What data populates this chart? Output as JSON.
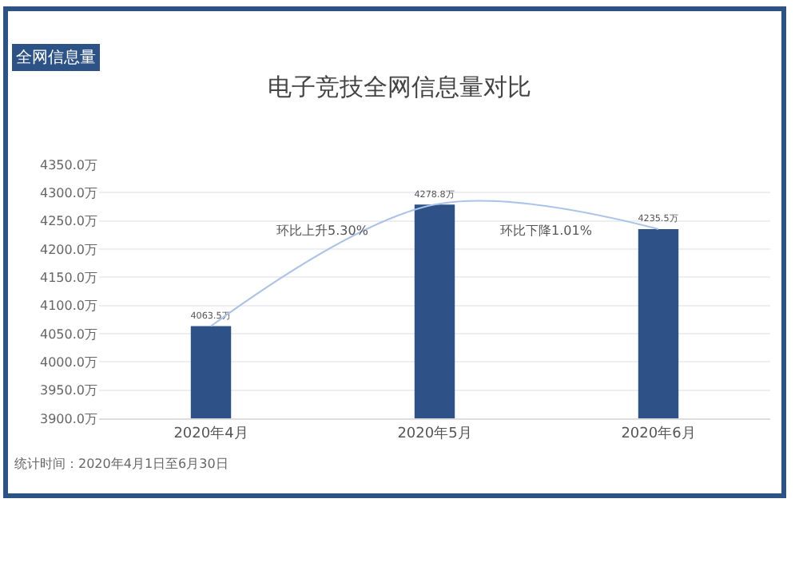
{
  "chart_data": {
    "type": "bar",
    "title": "电子竞技全网信息量对比",
    "categories": [
      "2020年4月",
      "2020年5月",
      "2020年6月"
    ],
    "series": [
      {
        "color": "#2e5287",
        "values": [
          4063.5,
          4278.8,
          4235.5
        ],
        "value_labels": [
          "4063.5万",
          "4278.8万",
          "4235.5万"
        ]
      },
      {
        "type": "line",
        "color": "#aac3e8",
        "values": [
          4063.5,
          4278.8,
          4235.5
        ]
      }
    ],
    "ylim": [
      3900,
      4350
    ],
    "yticks": [
      {
        "value": 3900,
        "label": "3900.0万"
      },
      {
        "value": 3950,
        "label": "3950.0万"
      },
      {
        "value": 4000,
        "label": "4000.0万"
      },
      {
        "value": 4050,
        "label": "4050.0万"
      },
      {
        "value": 4100,
        "label": "4100.0万"
      },
      {
        "value": 4150,
        "label": "4150.0万"
      },
      {
        "value": 4200,
        "label": "4200.0万"
      },
      {
        "value": 4250,
        "label": "4250.0万"
      },
      {
        "value": 4300,
        "label": "4300.0万"
      },
      {
        "value": 4350,
        "label": "4350.0万"
      }
    ],
    "grid": "y",
    "marker": "none",
    "line_style": "solid",
    "annotations": [
      "全网信息量",
      "环比上升5.30%",
      "环比下降1.01%",
      "统计时间：2020年4月1日至6月30日"
    ]
  }
}
